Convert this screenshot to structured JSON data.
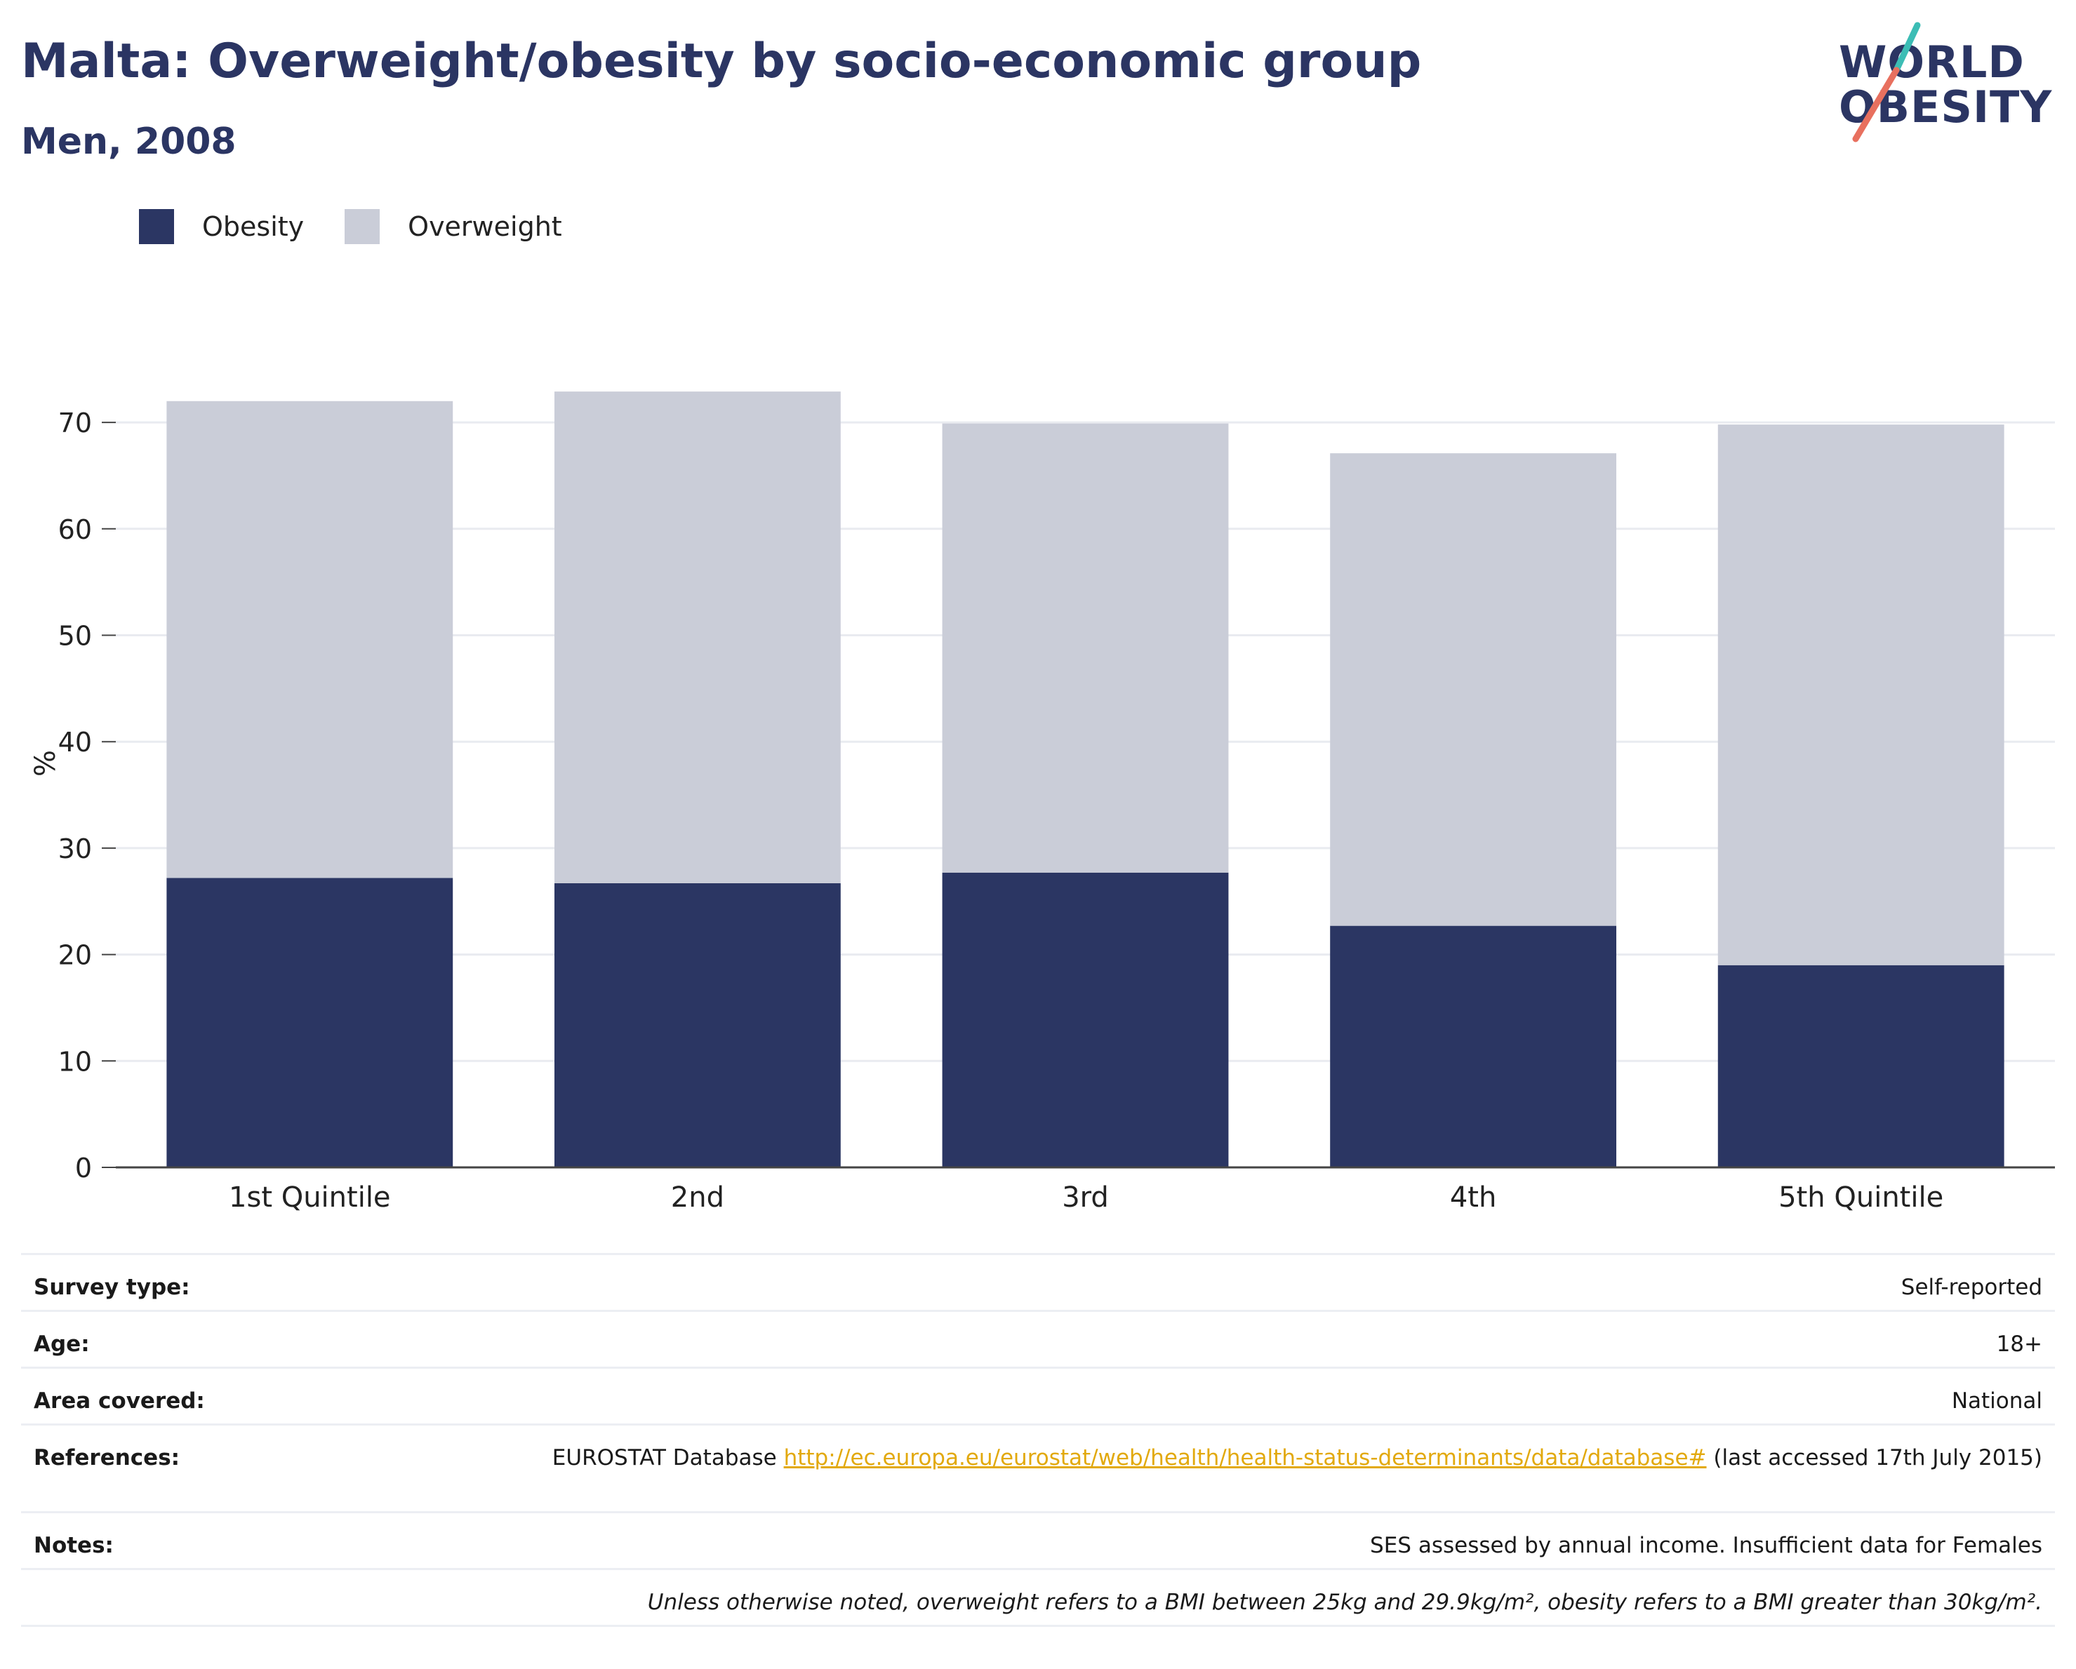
{
  "title": "Malta: Overweight/obesity by socio-economic group",
  "subtitle": "Men, 2008",
  "logo": {
    "line1": "WORLD",
    "line2": "OBESITY",
    "accent_teal": "#3cbdb5",
    "accent_coral": "#e8705f"
  },
  "legend": [
    {
      "label": "Obesity",
      "color": "#2b3663"
    },
    {
      "label": "Overweight",
      "color": "#cacdd8"
    }
  ],
  "chart_data": {
    "type": "bar",
    "stacked": true,
    "categories": [
      "1st Quintile",
      "2nd",
      "3rd",
      "4th",
      "5th Quintile"
    ],
    "series": [
      {
        "name": "Obesity",
        "color": "#2b3663",
        "values": [
          27.2,
          26.7,
          27.7,
          22.7,
          19.0
        ]
      },
      {
        "name": "Overweight",
        "color": "#cacdd8",
        "values": [
          44.8,
          46.2,
          42.2,
          44.4,
          50.8
        ]
      }
    ],
    "ylabel": "%",
    "xlabel": "",
    "ylim": [
      0,
      75
    ],
    "yticks": [
      0,
      10,
      20,
      30,
      40,
      50,
      60,
      70
    ],
    "grid": true,
    "legend_position": "top-left"
  },
  "info": {
    "survey_type": {
      "label": "Survey type:",
      "value": "Self-reported"
    },
    "age": {
      "label": "Age:",
      "value": "18+"
    },
    "area": {
      "label": "Area covered:",
      "value": "National"
    },
    "references": {
      "label": "References:",
      "prefix": "EUROSTAT Database ",
      "link": "http://ec.europa.eu/eurostat/web/health/health-status-determinants/data/database#",
      "suffix": " (last accessed 17th July 2015)"
    },
    "notes": {
      "label": "Notes:",
      "value": "SES assessed by annual income. Insufficient data for Females"
    },
    "footnote": "Unless otherwise noted, overweight refers to a BMI between 25kg and 29.9kg/m², obesity refers to a BMI greater than 30kg/m²."
  }
}
